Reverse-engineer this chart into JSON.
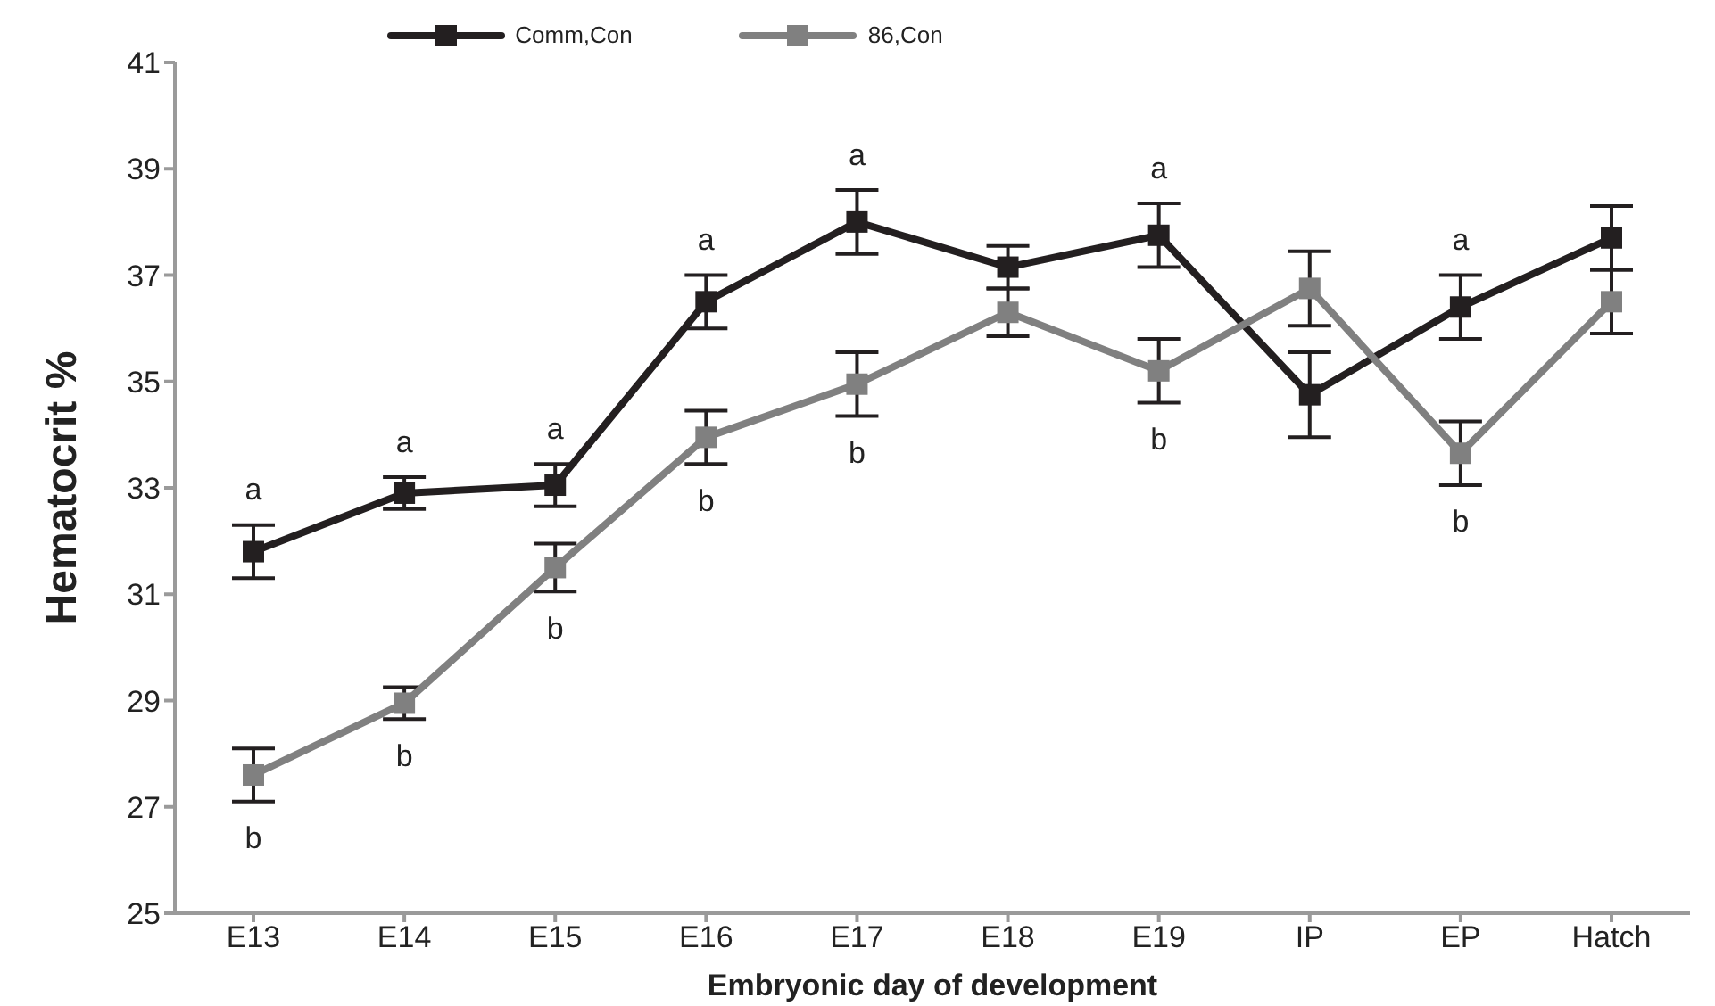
{
  "chart_data": {
    "type": "line",
    "xlabel": "Embryonic day of development",
    "ylabel": "Hematocrit %",
    "categories": [
      "E13",
      "E14",
      "E15",
      "E16",
      "E17",
      "E18",
      "E19",
      "IP",
      "EP",
      "Hatch"
    ],
    "series": [
      {
        "name": "Comm,Con",
        "color": "#231f20",
        "values": [
          31.8,
          32.9,
          33.05,
          36.5,
          38.0,
          37.15,
          37.75,
          34.75,
          36.4,
          37.7
        ],
        "errors": [
          0.5,
          0.3,
          0.4,
          0.5,
          0.6,
          0.4,
          0.6,
          0.8,
          0.6,
          0.6
        ]
      },
      {
        "name": "86,Con",
        "color": "#808080",
        "values": [
          27.6,
          28.95,
          31.5,
          33.95,
          34.95,
          36.3,
          35.2,
          36.75,
          33.65,
          36.5
        ],
        "errors": [
          0.5,
          0.3,
          0.45,
          0.5,
          0.6,
          0.45,
          0.6,
          0.7,
          0.6,
          0.6
        ]
      }
    ],
    "ylim": [
      25,
      41
    ],
    "yticks": [
      25,
      27,
      29,
      31,
      33,
      35,
      37,
      39,
      41
    ],
    "grid": false,
    "legend": "top",
    "marker": "square",
    "line_style": "solid",
    "annotations": [
      {
        "text": "a",
        "x": "E13",
        "y": 31.8
      },
      {
        "text": "a",
        "x": "E14",
        "y": 32.9
      },
      {
        "text": "a",
        "x": "E15",
        "y": 33.05
      },
      {
        "text": "a",
        "x": "E16",
        "y": 36.5
      },
      {
        "text": "a",
        "x": "E17",
        "y": 38.0
      },
      {
        "text": "a",
        "x": "E19",
        "y": 37.75
      },
      {
        "text": "a",
        "x": "EP",
        "y": 36.4
      },
      {
        "text": "b",
        "x": "E13",
        "y": 27.6
      },
      {
        "text": "b",
        "x": "E14",
        "y": 28.95
      },
      {
        "text": "b",
        "x": "E15",
        "y": 31.5
      },
      {
        "text": "b",
        "x": "E16",
        "y": 33.95
      },
      {
        "text": "b",
        "x": "E17",
        "y": 34.95
      },
      {
        "text": "b",
        "x": "E19",
        "y": 35.2
      },
      {
        "text": "b",
        "x": "EP",
        "y": 33.65
      }
    ]
  }
}
